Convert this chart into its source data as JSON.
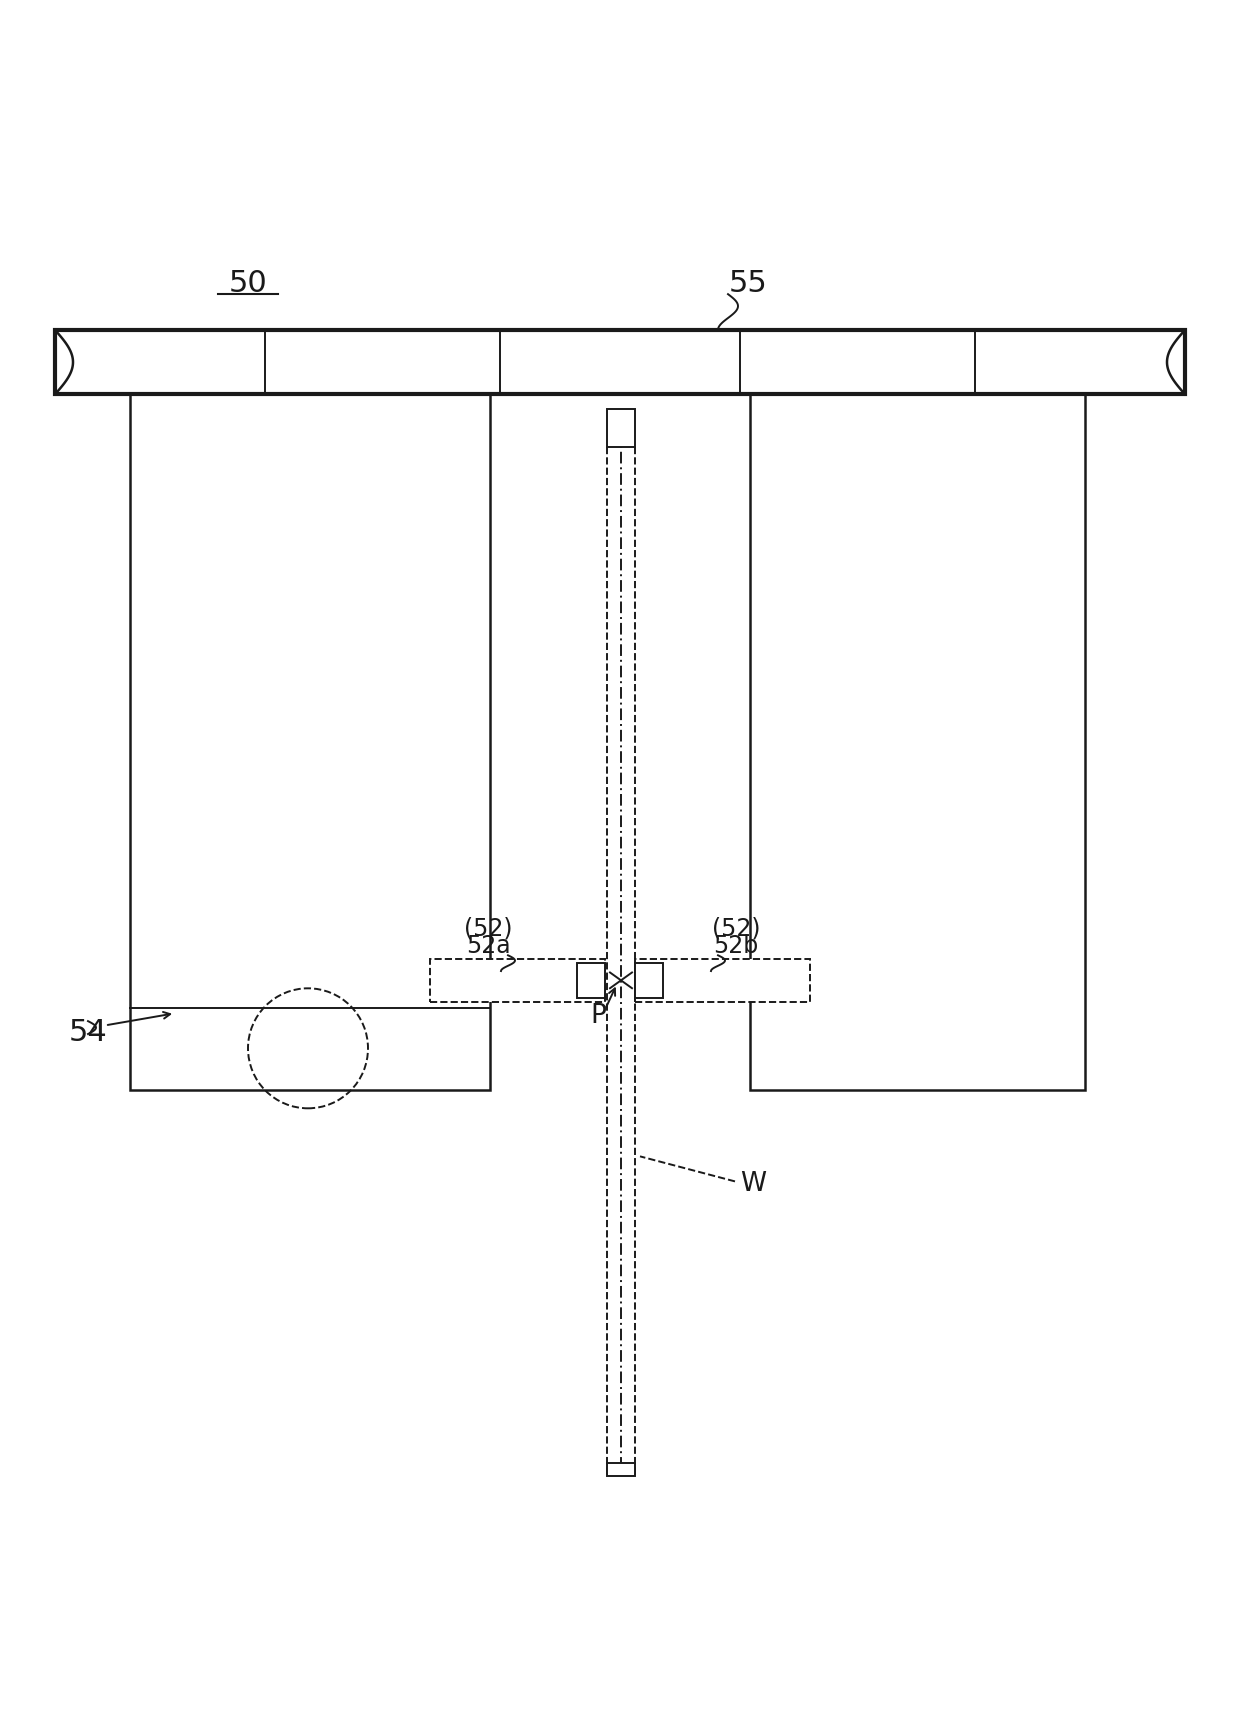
{
  "bg_color": "#ffffff",
  "line_color": "#1a1a1a",
  "fig_width": 12.4,
  "fig_height": 17.33,
  "label_50": "50",
  "label_55": "55",
  "label_54": "54",
  "label_P": "P",
  "label_W": "W"
}
